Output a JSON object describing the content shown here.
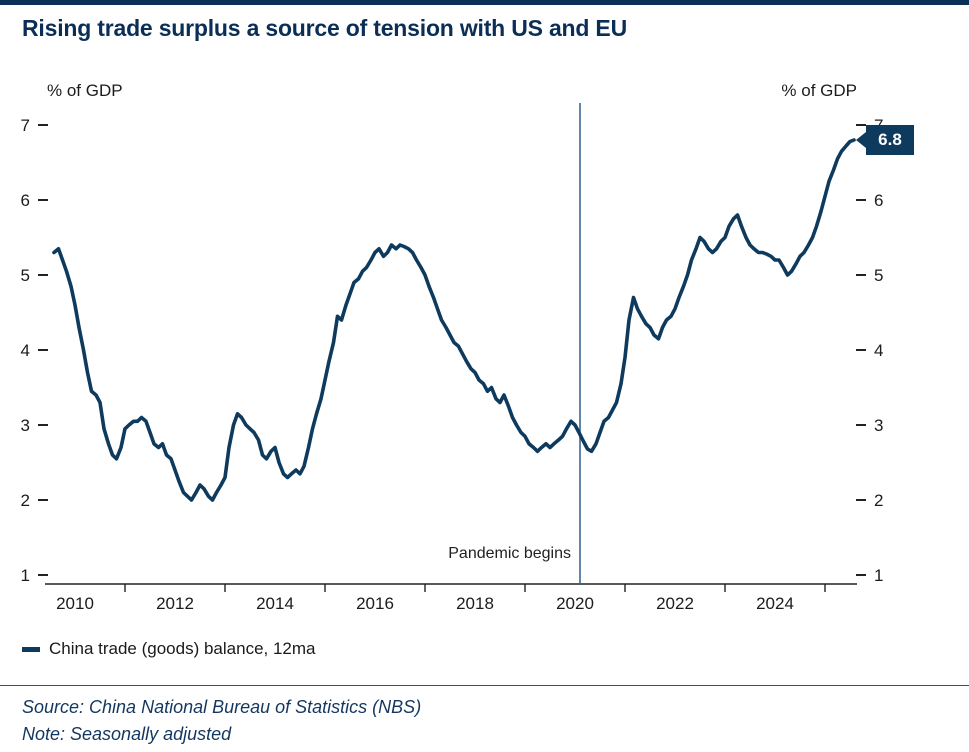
{
  "title": "Rising trade surplus a source of tension with US and EU",
  "axis_unit_left": "% of GDP",
  "axis_unit_right": "% of GDP",
  "annotation": {
    "pandemic_label": "Pandemic begins",
    "end_value_label": "6.8"
  },
  "legend": {
    "label": "China trade (goods) balance, 12ma"
  },
  "footer": {
    "source": "Source: China National Bureau of Statistics (NBS)",
    "note": "Note: Seasonally adjusted"
  },
  "colors": {
    "accent": "#0e3a5e",
    "title": "#0a2e55",
    "pandemic_line": "#2e5f8a",
    "axis": "#222222"
  },
  "chart_data": {
    "type": "line",
    "title": "Rising trade surplus a source of tension with US and EU",
    "xlabel": "",
    "ylabel": "% of GDP",
    "ylim": [
      1,
      7
    ],
    "yticks": [
      1,
      2,
      3,
      4,
      5,
      6,
      7
    ],
    "xlim": [
      2009.4,
      2026.0
    ],
    "xticks_labeled": [
      2010,
      2012,
      2014,
      2016,
      2018,
      2020,
      2022,
      2024
    ],
    "xticks_minor": [
      2011,
      2013,
      2015,
      2017,
      2019,
      2021,
      2023,
      2025
    ],
    "grid": false,
    "legend_position": "bottom-left",
    "annotations": {
      "vline_x": 2020.1,
      "vline_label": "Pandemic begins",
      "last_value": 6.8
    },
    "series": [
      {
        "name": "China trade (goods) balance, 12ma",
        "points": [
          [
            2009.58,
            5.3
          ],
          [
            2009.67,
            5.35
          ],
          [
            2009.75,
            5.2
          ],
          [
            2009.83,
            5.05
          ],
          [
            2009.92,
            4.85
          ],
          [
            2010.0,
            4.6
          ],
          [
            2010.08,
            4.3
          ],
          [
            2010.17,
            4.0
          ],
          [
            2010.25,
            3.7
          ],
          [
            2010.33,
            3.45
          ],
          [
            2010.42,
            3.4
          ],
          [
            2010.5,
            3.3
          ],
          [
            2010.58,
            2.95
          ],
          [
            2010.67,
            2.75
          ],
          [
            2010.75,
            2.6
          ],
          [
            2010.83,
            2.55
          ],
          [
            2010.92,
            2.7
          ],
          [
            2011.0,
            2.95
          ],
          [
            2011.08,
            3.0
          ],
          [
            2011.17,
            3.05
          ],
          [
            2011.25,
            3.05
          ],
          [
            2011.33,
            3.1
          ],
          [
            2011.42,
            3.05
          ],
          [
            2011.5,
            2.9
          ],
          [
            2011.58,
            2.75
          ],
          [
            2011.67,
            2.7
          ],
          [
            2011.75,
            2.75
          ],
          [
            2011.83,
            2.6
          ],
          [
            2011.92,
            2.55
          ],
          [
            2012.0,
            2.4
          ],
          [
            2012.08,
            2.25
          ],
          [
            2012.17,
            2.1
          ],
          [
            2012.25,
            2.05
          ],
          [
            2012.33,
            2.0
          ],
          [
            2012.42,
            2.1
          ],
          [
            2012.5,
            2.2
          ],
          [
            2012.58,
            2.15
          ],
          [
            2012.67,
            2.05
          ],
          [
            2012.75,
            2.0
          ],
          [
            2012.83,
            2.1
          ],
          [
            2012.92,
            2.2
          ],
          [
            2013.0,
            2.3
          ],
          [
            2013.08,
            2.7
          ],
          [
            2013.17,
            3.0
          ],
          [
            2013.25,
            3.15
          ],
          [
            2013.33,
            3.1
          ],
          [
            2013.42,
            3.0
          ],
          [
            2013.5,
            2.95
          ],
          [
            2013.58,
            2.9
          ],
          [
            2013.67,
            2.8
          ],
          [
            2013.75,
            2.6
          ],
          [
            2013.83,
            2.55
          ],
          [
            2013.92,
            2.65
          ],
          [
            2014.0,
            2.7
          ],
          [
            2014.08,
            2.5
          ],
          [
            2014.17,
            2.35
          ],
          [
            2014.25,
            2.3
          ],
          [
            2014.33,
            2.35
          ],
          [
            2014.42,
            2.4
          ],
          [
            2014.5,
            2.35
          ],
          [
            2014.58,
            2.45
          ],
          [
            2014.67,
            2.7
          ],
          [
            2014.75,
            2.95
          ],
          [
            2014.83,
            3.15
          ],
          [
            2014.92,
            3.35
          ],
          [
            2015.0,
            3.6
          ],
          [
            2015.08,
            3.85
          ],
          [
            2015.17,
            4.1
          ],
          [
            2015.25,
            4.45
          ],
          [
            2015.33,
            4.4
          ],
          [
            2015.42,
            4.6
          ],
          [
            2015.5,
            4.75
          ],
          [
            2015.58,
            4.9
          ],
          [
            2015.67,
            4.95
          ],
          [
            2015.75,
            5.05
          ],
          [
            2015.83,
            5.1
          ],
          [
            2015.92,
            5.2
          ],
          [
            2016.0,
            5.3
          ],
          [
            2016.08,
            5.35
          ],
          [
            2016.17,
            5.25
          ],
          [
            2016.25,
            5.3
          ],
          [
            2016.33,
            5.4
          ],
          [
            2016.42,
            5.35
          ],
          [
            2016.5,
            5.4
          ],
          [
            2016.58,
            5.38
          ],
          [
            2016.67,
            5.35
          ],
          [
            2016.75,
            5.3
          ],
          [
            2016.83,
            5.2
          ],
          [
            2016.92,
            5.1
          ],
          [
            2017.0,
            5.0
          ],
          [
            2017.08,
            4.85
          ],
          [
            2017.17,
            4.7
          ],
          [
            2017.25,
            4.55
          ],
          [
            2017.33,
            4.4
          ],
          [
            2017.42,
            4.3
          ],
          [
            2017.5,
            4.2
          ],
          [
            2017.58,
            4.1
          ],
          [
            2017.67,
            4.05
          ],
          [
            2017.75,
            3.95
          ],
          [
            2017.83,
            3.85
          ],
          [
            2017.92,
            3.75
          ],
          [
            2018.0,
            3.7
          ],
          [
            2018.08,
            3.6
          ],
          [
            2018.17,
            3.55
          ],
          [
            2018.25,
            3.45
          ],
          [
            2018.33,
            3.5
          ],
          [
            2018.42,
            3.35
          ],
          [
            2018.5,
            3.3
          ],
          [
            2018.58,
            3.4
          ],
          [
            2018.67,
            3.25
          ],
          [
            2018.75,
            3.1
          ],
          [
            2018.83,
            3.0
          ],
          [
            2018.92,
            2.9
          ],
          [
            2019.0,
            2.85
          ],
          [
            2019.08,
            2.75
          ],
          [
            2019.17,
            2.7
          ],
          [
            2019.25,
            2.65
          ],
          [
            2019.33,
            2.7
          ],
          [
            2019.42,
            2.75
          ],
          [
            2019.5,
            2.7
          ],
          [
            2019.58,
            2.75
          ],
          [
            2019.67,
            2.8
          ],
          [
            2019.75,
            2.85
          ],
          [
            2019.83,
            2.95
          ],
          [
            2019.92,
            3.05
          ],
          [
            2020.0,
            3.0
          ],
          [
            2020.08,
            2.9
          ],
          [
            2020.17,
            2.78
          ],
          [
            2020.25,
            2.68
          ],
          [
            2020.33,
            2.65
          ],
          [
            2020.42,
            2.75
          ],
          [
            2020.5,
            2.9
          ],
          [
            2020.58,
            3.05
          ],
          [
            2020.67,
            3.1
          ],
          [
            2020.75,
            3.2
          ],
          [
            2020.83,
            3.3
          ],
          [
            2020.92,
            3.55
          ],
          [
            2021.0,
            3.9
          ],
          [
            2021.08,
            4.4
          ],
          [
            2021.17,
            4.7
          ],
          [
            2021.25,
            4.55
          ],
          [
            2021.33,
            4.45
          ],
          [
            2021.42,
            4.35
          ],
          [
            2021.5,
            4.3
          ],
          [
            2021.58,
            4.2
          ],
          [
            2021.67,
            4.15
          ],
          [
            2021.75,
            4.3
          ],
          [
            2021.83,
            4.4
          ],
          [
            2021.92,
            4.45
          ],
          [
            2022.0,
            4.55
          ],
          [
            2022.08,
            4.7
          ],
          [
            2022.17,
            4.85
          ],
          [
            2022.25,
            5.0
          ],
          [
            2022.33,
            5.2
          ],
          [
            2022.42,
            5.35
          ],
          [
            2022.5,
            5.5
          ],
          [
            2022.58,
            5.45
          ],
          [
            2022.67,
            5.35
          ],
          [
            2022.75,
            5.3
          ],
          [
            2022.83,
            5.35
          ],
          [
            2022.92,
            5.45
          ],
          [
            2023.0,
            5.5
          ],
          [
            2023.08,
            5.65
          ],
          [
            2023.17,
            5.75
          ],
          [
            2023.25,
            5.8
          ],
          [
            2023.33,
            5.65
          ],
          [
            2023.42,
            5.5
          ],
          [
            2023.5,
            5.4
          ],
          [
            2023.58,
            5.35
          ],
          [
            2023.67,
            5.3
          ],
          [
            2023.75,
            5.3
          ],
          [
            2023.83,
            5.28
          ],
          [
            2023.92,
            5.25
          ],
          [
            2024.0,
            5.2
          ],
          [
            2024.08,
            5.2
          ],
          [
            2024.17,
            5.1
          ],
          [
            2024.25,
            5.0
          ],
          [
            2024.33,
            5.05
          ],
          [
            2024.42,
            5.15
          ],
          [
            2024.5,
            5.25
          ],
          [
            2024.58,
            5.3
          ],
          [
            2024.67,
            5.4
          ],
          [
            2024.75,
            5.5
          ],
          [
            2024.83,
            5.65
          ],
          [
            2024.92,
            5.85
          ],
          [
            2025.0,
            6.05
          ],
          [
            2025.08,
            6.25
          ],
          [
            2025.17,
            6.4
          ],
          [
            2025.25,
            6.55
          ],
          [
            2025.33,
            6.65
          ],
          [
            2025.42,
            6.72
          ],
          [
            2025.5,
            6.78
          ],
          [
            2025.58,
            6.8
          ]
        ]
      }
    ]
  }
}
